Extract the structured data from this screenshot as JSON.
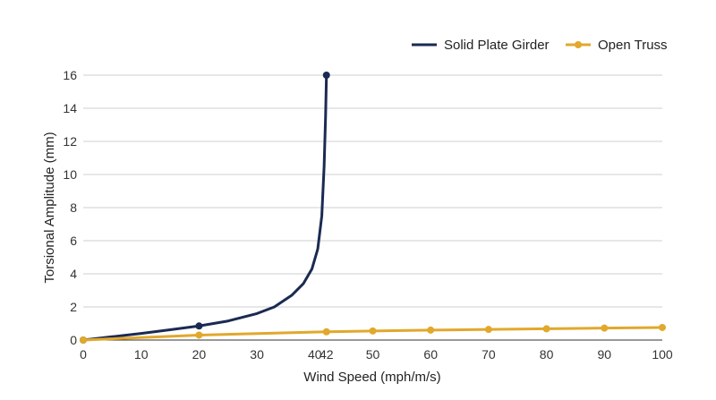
{
  "chart_data": {
    "type": "line",
    "x_axis": {
      "label": "Wind Speed (mph/m/s)",
      "ticks": [
        0,
        10,
        20,
        30,
        40,
        42,
        50,
        60,
        70,
        80,
        90,
        100
      ],
      "range": [
        0,
        100
      ]
    },
    "y_axis": {
      "label": "Torsional Amplitude (mm)",
      "ticks": [
        0,
        2,
        4,
        6,
        8,
        10,
        12,
        14,
        16
      ],
      "range": [
        0,
        16
      ]
    },
    "grid": true,
    "legend_position": "top-right",
    "series": [
      {
        "name": "Solid Plate Girder",
        "color": "#1b2a52",
        "points": [
          {
            "x": 0,
            "y": 0
          },
          {
            "x": 20,
            "y": 0.85
          },
          {
            "x": 42,
            "y": 16
          }
        ],
        "curve": [
          [
            0,
            0
          ],
          [
            5,
            0.2
          ],
          [
            10,
            0.4
          ],
          [
            15,
            0.62
          ],
          [
            20,
            0.85
          ],
          [
            25,
            1.15
          ],
          [
            30,
            1.6
          ],
          [
            33,
            2.0
          ],
          [
            36,
            2.7
          ],
          [
            38,
            3.4
          ],
          [
            39.5,
            4.3
          ],
          [
            40.5,
            5.5
          ],
          [
            41.2,
            7.5
          ],
          [
            41.6,
            10.5
          ],
          [
            41.85,
            13.5
          ],
          [
            42,
            16
          ]
        ]
      },
      {
        "name": "Open Truss",
        "color": "#e2a82c",
        "points": [
          {
            "x": 0,
            "y": 0
          },
          {
            "x": 20,
            "y": 0.3
          },
          {
            "x": 42,
            "y": 0.5
          },
          {
            "x": 50,
            "y": 0.55
          },
          {
            "x": 60,
            "y": 0.6
          },
          {
            "x": 70,
            "y": 0.64
          },
          {
            "x": 80,
            "y": 0.68
          },
          {
            "x": 90,
            "y": 0.72
          },
          {
            "x": 100,
            "y": 0.76
          }
        ]
      }
    ]
  }
}
